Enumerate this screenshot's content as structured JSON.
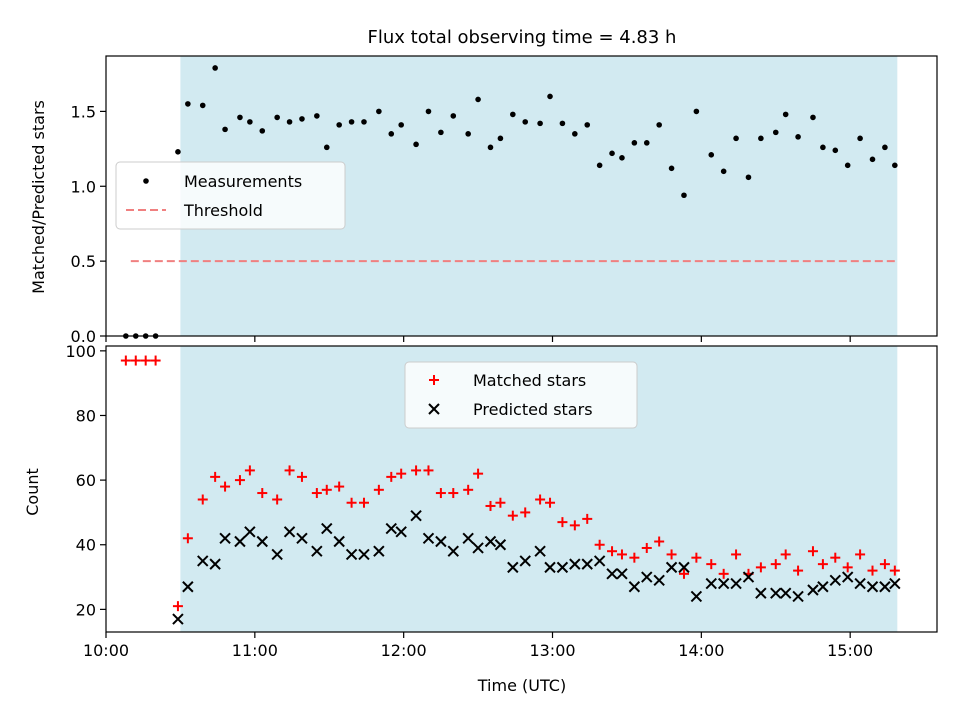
{
  "chart_data": [
    {
      "type": "scatter",
      "title": "Flux total observing time = 4.83 h",
      "xlabel": "",
      "ylabel": "Matched/Predicted stars",
      "xlim": [
        "10:00",
        "15:35"
      ],
      "ylim": [
        0.0,
        1.87
      ],
      "yticks": [
        "0.0",
        "0.5",
        "1.0",
        "1.5"
      ],
      "shaded_interval": [
        "10:30",
        "15:19"
      ],
      "shade_color": "#add8e6",
      "legend_position": "upper-left",
      "legend": [
        "Measurements",
        "Threshold"
      ],
      "threshold": {
        "name": "Threshold",
        "value": 0.5,
        "x_from": "10:10",
        "x_to": "15:19",
        "color": "#f08080",
        "style": "dashed"
      },
      "series": [
        {
          "name": "Measurements",
          "color": "#000000",
          "marker": "dot",
          "x": [
            "10:08",
            "10:12",
            "10:16",
            "10:20",
            "10:29",
            "10:33",
            "10:39",
            "10:44",
            "10:48",
            "10:54",
            "10:58",
            "11:03",
            "11:09",
            "11:14",
            "11:19",
            "11:25",
            "11:29",
            "11:34",
            "11:39",
            "11:44",
            "11:50",
            "11:55",
            "11:59",
            "12:05",
            "12:10",
            "12:15",
            "12:20",
            "12:26",
            "12:30",
            "12:35",
            "12:39",
            "12:44",
            "12:49",
            "12:55",
            "12:59",
            "13:04",
            "13:09",
            "13:14",
            "13:19",
            "13:24",
            "13:28",
            "13:33",
            "13:38",
            "13:43",
            "13:48",
            "13:53",
            "13:58",
            "14:04",
            "14:09",
            "14:14",
            "14:19",
            "14:24",
            "14:30",
            "14:34",
            "14:39",
            "14:45",
            "14:49",
            "14:54",
            "14:59",
            "15:04",
            "15:09",
            "15:14",
            "15:18"
          ],
          "y": [
            0.0,
            0.0,
            0.0,
            0.0,
            1.23,
            1.55,
            1.54,
            1.79,
            1.38,
            1.46,
            1.43,
            1.37,
            1.46,
            1.43,
            1.45,
            1.47,
            1.26,
            1.41,
            1.43,
            1.43,
            1.5,
            1.35,
            1.41,
            1.28,
            1.5,
            1.36,
            1.47,
            1.35,
            1.58,
            1.26,
            1.32,
            1.48,
            1.43,
            1.42,
            1.6,
            1.42,
            1.35,
            1.41,
            1.14,
            1.22,
            1.19,
            1.29,
            1.29,
            1.41,
            1.12,
            0.94,
            1.5,
            1.21,
            1.1,
            1.32,
            1.06,
            1.32,
            1.36,
            1.48,
            1.33,
            1.46,
            1.26,
            1.24,
            1.14,
            1.32,
            1.18,
            1.26,
            1.14
          ]
        }
      ]
    },
    {
      "type": "scatter",
      "title": "",
      "xlabel": "Time (UTC)",
      "ylabel": "Count",
      "xlim": [
        "10:00",
        "15:35"
      ],
      "ylim": [
        13,
        101.5
      ],
      "yticks": [
        "20",
        "40",
        "60",
        "80",
        "100"
      ],
      "xticks": [
        "10:00",
        "11:00",
        "12:00",
        "13:00",
        "14:00",
        "15:00"
      ],
      "shaded_interval": [
        "10:30",
        "15:19"
      ],
      "shade_color": "#add8e6",
      "legend_position": "upper-center",
      "legend": [
        "Matched stars",
        "Predicted stars"
      ],
      "series": [
        {
          "name": "Matched stars",
          "color": "#ff0000",
          "marker": "plus",
          "x": [
            "10:08",
            "10:12",
            "10:16",
            "10:20",
            "10:29",
            "10:33",
            "10:39",
            "10:44",
            "10:48",
            "10:54",
            "10:58",
            "11:03",
            "11:09",
            "11:14",
            "11:19",
            "11:25",
            "11:29",
            "11:34",
            "11:39",
            "11:44",
            "11:50",
            "11:55",
            "11:59",
            "12:05",
            "12:10",
            "12:15",
            "12:20",
            "12:26",
            "12:30",
            "12:35",
            "12:39",
            "12:44",
            "12:49",
            "12:55",
            "12:59",
            "13:04",
            "13:09",
            "13:14",
            "13:19",
            "13:24",
            "13:28",
            "13:33",
            "13:38",
            "13:43",
            "13:48",
            "13:53",
            "13:58",
            "14:04",
            "14:09",
            "14:14",
            "14:19",
            "14:24",
            "14:30",
            "14:34",
            "14:39",
            "14:45",
            "14:49",
            "14:54",
            "14:59",
            "15:04",
            "15:09",
            "15:14",
            "15:18"
          ],
          "y": [
            97,
            97,
            97,
            97,
            21,
            42,
            54,
            61,
            58,
            60,
            63,
            56,
            54,
            63,
            61,
            56,
            57,
            58,
            53,
            53,
            57,
            61,
            62,
            63,
            63,
            56,
            56,
            57,
            62,
            52,
            53,
            49,
            50,
            54,
            53,
            47,
            46,
            48,
            40,
            38,
            37,
            36,
            39,
            41,
            37,
            31,
            36,
            34,
            31,
            37,
            31,
            33,
            34,
            37,
            32,
            38,
            34,
            36,
            33,
            37,
            32,
            34,
            32
          ]
        },
        {
          "name": "Predicted stars",
          "color": "#000000",
          "marker": "x",
          "x": [
            "10:29",
            "10:33",
            "10:39",
            "10:44",
            "10:48",
            "10:54",
            "10:58",
            "11:03",
            "11:09",
            "11:14",
            "11:19",
            "11:25",
            "11:29",
            "11:34",
            "11:39",
            "11:44",
            "11:50",
            "11:55",
            "11:59",
            "12:05",
            "12:10",
            "12:15",
            "12:20",
            "12:26",
            "12:30",
            "12:35",
            "12:39",
            "12:44",
            "12:49",
            "12:55",
            "12:59",
            "13:04",
            "13:09",
            "13:14",
            "13:19",
            "13:24",
            "13:28",
            "13:33",
            "13:38",
            "13:43",
            "13:48",
            "13:53",
            "13:58",
            "14:04",
            "14:09",
            "14:14",
            "14:19",
            "14:24",
            "14:30",
            "14:34",
            "14:39",
            "14:45",
            "14:49",
            "14:54",
            "14:59",
            "15:04",
            "15:09",
            "15:14",
            "15:18"
          ],
          "y": [
            17,
            27,
            35,
            34,
            42,
            41,
            44,
            41,
            37,
            44,
            42,
            38,
            45,
            41,
            37,
            37,
            38,
            45,
            44,
            49,
            42,
            41,
            38,
            42,
            39,
            41,
            40,
            33,
            35,
            38,
            33,
            33,
            34,
            34,
            35,
            31,
            31,
            27,
            30,
            29,
            33,
            33,
            24,
            28,
            28,
            28,
            30,
            25,
            25,
            25,
            24,
            26,
            27,
            29,
            30,
            28,
            27,
            27,
            28
          ]
        }
      ]
    }
  ]
}
